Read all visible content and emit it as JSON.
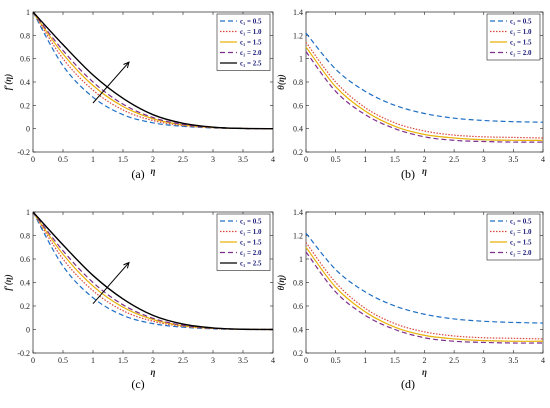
{
  "colors": {
    "blue": "#1f6fc5",
    "red": "#d9483b",
    "orange": "#e8b30a",
    "purple": "#7e2f8e",
    "black": "#000000"
  },
  "chart_data": [
    {
      "type": "line",
      "caption": "(a)",
      "xlabel": "η",
      "ylabel": "f′(η)",
      "xlim": [
        0,
        4
      ],
      "ylim": [
        -0.2,
        1
      ],
      "xticks": [
        "0",
        "0.5",
        "1",
        "1.5",
        "2",
        "2.5",
        "3",
        "3.5",
        "4"
      ],
      "yticks": [
        "-0.2",
        "0",
        "0.2",
        "0.4",
        "0.6",
        "0.8",
        "1"
      ],
      "legend": "top-right",
      "annotation": "arrow",
      "x": [
        0,
        0.5,
        1,
        1.5,
        2,
        2.5,
        3,
        3.5,
        4
      ],
      "series": [
        {
          "name": "c₁ = 0.5",
          "color": "blue",
          "dash": "dash",
          "values": [
            1,
            0.54,
            0.27,
            0.12,
            0.05,
            0.02,
            0.006,
            0.001,
            0
          ]
        },
        {
          "name": "c₁ = 1.0",
          "color": "red",
          "dash": "dot",
          "values": [
            1,
            0.6,
            0.33,
            0.16,
            0.07,
            0.027,
            0.008,
            0.002,
            0
          ]
        },
        {
          "name": "c₁ = 1.5",
          "color": "orange",
          "dash": "solid",
          "values": [
            1,
            0.64,
            0.37,
            0.19,
            0.085,
            0.032,
            0.01,
            0.002,
            0
          ]
        },
        {
          "name": "c₁ = 2.0",
          "color": "purple",
          "dash": "dash",
          "values": [
            1,
            0.67,
            0.4,
            0.21,
            0.095,
            0.036,
            0.011,
            0.002,
            0
          ]
        },
        {
          "name": "c₁ = 2.5",
          "color": "black",
          "dash": "solid",
          "values": [
            1,
            0.72,
            0.46,
            0.26,
            0.12,
            0.046,
            0.013,
            0.002,
            0
          ]
        }
      ]
    },
    {
      "type": "line",
      "caption": "(b)",
      "xlabel": "η",
      "ylabel": "θ(η)",
      "xlim": [
        0,
        4
      ],
      "ylim": [
        0.2,
        1.4
      ],
      "xticks": [
        "0",
        "0.5",
        "1",
        "1.5",
        "2",
        "2.5",
        "3",
        "3.5",
        "4"
      ],
      "yticks": [
        "0.2",
        "0.4",
        "0.6",
        "0.8",
        "1",
        "1.2",
        "1.4"
      ],
      "legend": "top-right",
      "x": [
        0,
        0.5,
        1,
        1.5,
        2,
        2.5,
        3,
        3.5,
        4
      ],
      "series": [
        {
          "name": "c₁ = 0.5",
          "color": "blue",
          "dash": "dash",
          "values": [
            1.22,
            0.91,
            0.72,
            0.6,
            0.53,
            0.49,
            0.47,
            0.46,
            0.455
          ]
        },
        {
          "name": "c₁ = 1.0",
          "color": "red",
          "dash": "dot",
          "values": [
            1.14,
            0.8,
            0.58,
            0.45,
            0.38,
            0.345,
            0.33,
            0.325,
            0.32
          ]
        },
        {
          "name": "c₁ = 1.5",
          "color": "orange",
          "dash": "solid",
          "values": [
            1.1,
            0.76,
            0.55,
            0.42,
            0.35,
            0.32,
            0.305,
            0.3,
            0.3
          ]
        },
        {
          "name": "c₁ = 2.0",
          "color": "purple",
          "dash": "dash",
          "values": [
            1.06,
            0.72,
            0.52,
            0.4,
            0.33,
            0.3,
            0.29,
            0.285,
            0.285
          ]
        }
      ]
    },
    {
      "type": "line",
      "caption": "(c)",
      "xlabel": "η",
      "ylabel": "f′(η)",
      "xlim": [
        0,
        4
      ],
      "ylim": [
        -0.2,
        1
      ],
      "xticks": [
        "0",
        "0.5",
        "1",
        "1.5",
        "2",
        "2.5",
        "3",
        "3.5",
        "4"
      ],
      "yticks": [
        "-0.2",
        "0",
        "0.2",
        "0.4",
        "0.6",
        "0.8",
        "1"
      ],
      "legend": "top-right",
      "annotation": "arrow",
      "x": [
        0,
        0.5,
        1,
        1.5,
        2,
        2.5,
        3,
        3.5,
        4
      ],
      "series": [
        {
          "name": "c₁ = 0.5",
          "color": "blue",
          "dash": "dash",
          "values": [
            1,
            0.54,
            0.27,
            0.12,
            0.05,
            0.02,
            0.006,
            0.001,
            0
          ]
        },
        {
          "name": "c₁ = 1.0",
          "color": "red",
          "dash": "dot",
          "values": [
            1,
            0.6,
            0.33,
            0.16,
            0.07,
            0.027,
            0.008,
            0.002,
            0
          ]
        },
        {
          "name": "c₁ = 1.5",
          "color": "orange",
          "dash": "solid",
          "values": [
            1,
            0.64,
            0.37,
            0.19,
            0.085,
            0.032,
            0.01,
            0.002,
            0
          ]
        },
        {
          "name": "c₁ = 2.0",
          "color": "purple",
          "dash": "dash",
          "values": [
            1,
            0.67,
            0.4,
            0.21,
            0.095,
            0.036,
            0.011,
            0.002,
            0
          ]
        },
        {
          "name": "c₁ = 2.5",
          "color": "black",
          "dash": "solid",
          "values": [
            1,
            0.72,
            0.46,
            0.26,
            0.12,
            0.046,
            0.013,
            0.002,
            0
          ]
        }
      ]
    },
    {
      "type": "line",
      "caption": "(d)",
      "xlabel": "η",
      "ylabel": "θ(η)",
      "xlim": [
        0,
        4
      ],
      "ylim": [
        0.2,
        1.4
      ],
      "xticks": [
        "0",
        "0.5",
        "1",
        "1.5",
        "2",
        "2.5",
        "3",
        "3.5",
        "4"
      ],
      "yticks": [
        "0.2",
        "0.4",
        "0.6",
        "0.8",
        "1",
        "1.2",
        "1.4"
      ],
      "legend": "top-right",
      "x": [
        0,
        0.5,
        1,
        1.5,
        2,
        2.5,
        3,
        3.5,
        4
      ],
      "series": [
        {
          "name": "c₁ = 0.5",
          "color": "blue",
          "dash": "dash",
          "values": [
            1.22,
            0.91,
            0.72,
            0.6,
            0.53,
            0.49,
            0.47,
            0.46,
            0.455
          ]
        },
        {
          "name": "c₁ = 1.0",
          "color": "red",
          "dash": "dot",
          "values": [
            1.14,
            0.8,
            0.58,
            0.45,
            0.38,
            0.345,
            0.33,
            0.325,
            0.32
          ]
        },
        {
          "name": "c₁ = 1.5",
          "color": "orange",
          "dash": "solid",
          "values": [
            1.1,
            0.76,
            0.55,
            0.42,
            0.35,
            0.32,
            0.305,
            0.3,
            0.3
          ]
        },
        {
          "name": "c₁ = 2.0",
          "color": "purple",
          "dash": "dash",
          "values": [
            1.06,
            0.72,
            0.52,
            0.4,
            0.33,
            0.3,
            0.29,
            0.285,
            0.285
          ]
        }
      ]
    }
  ]
}
